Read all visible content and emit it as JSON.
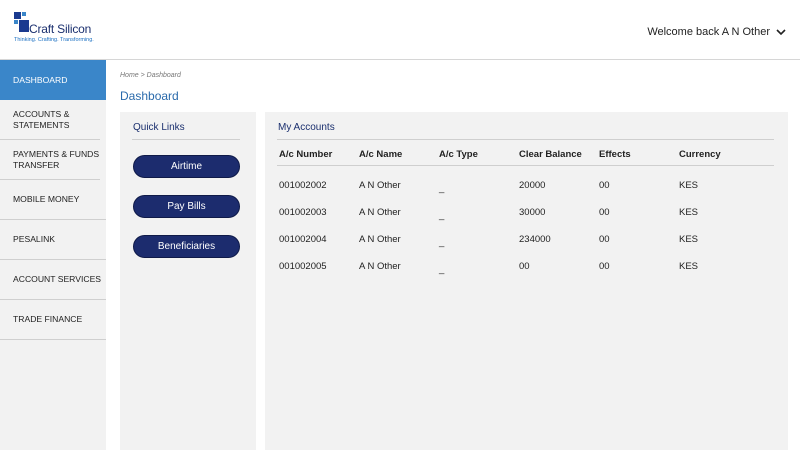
{
  "header": {
    "logo_name": "Craft Silicon",
    "logo_tagline": "Thinking. Crafting. Transforming.",
    "welcome": "Welcome back A N Other"
  },
  "sidebar": {
    "items": [
      {
        "label": "DASHBOARD",
        "active": true
      },
      {
        "label": "ACCOUNTS & STATEMENTS"
      },
      {
        "label": "PAYMENTS & FUNDS TRANSFER"
      },
      {
        "label": "MOBILE MONEY"
      },
      {
        "label": "PESALINK"
      },
      {
        "label": "ACCOUNT SERVICES"
      },
      {
        "label": "TRADE FINANCE"
      }
    ]
  },
  "breadcrumb": "Home > Dashboard",
  "page_title": "Dashboard",
  "quick_links": {
    "title": "Quick Links",
    "buttons": [
      "Airtime",
      "Pay Bills",
      "Beneficiaries"
    ]
  },
  "accounts": {
    "title": "My Accounts",
    "columns": [
      "A/c Number",
      "A/c Name",
      "A/c Type",
      "Clear Balance",
      "Effects",
      "Currency"
    ],
    "rows": [
      [
        "001002002",
        "A N Other",
        "_",
        "20000",
        "00",
        "KES"
      ],
      [
        "001002003",
        "A N Other",
        "_",
        "30000",
        "00",
        "KES"
      ],
      [
        "001002004",
        "A N Other",
        "_",
        "234000",
        "00",
        "KES"
      ],
      [
        "001002005",
        "A N Other",
        "_",
        "00",
        "00",
        "KES"
      ]
    ]
  },
  "colors": {
    "accent": "#3a86c9",
    "button": "#1c2c6e",
    "panel": "#f2f2f2"
  }
}
